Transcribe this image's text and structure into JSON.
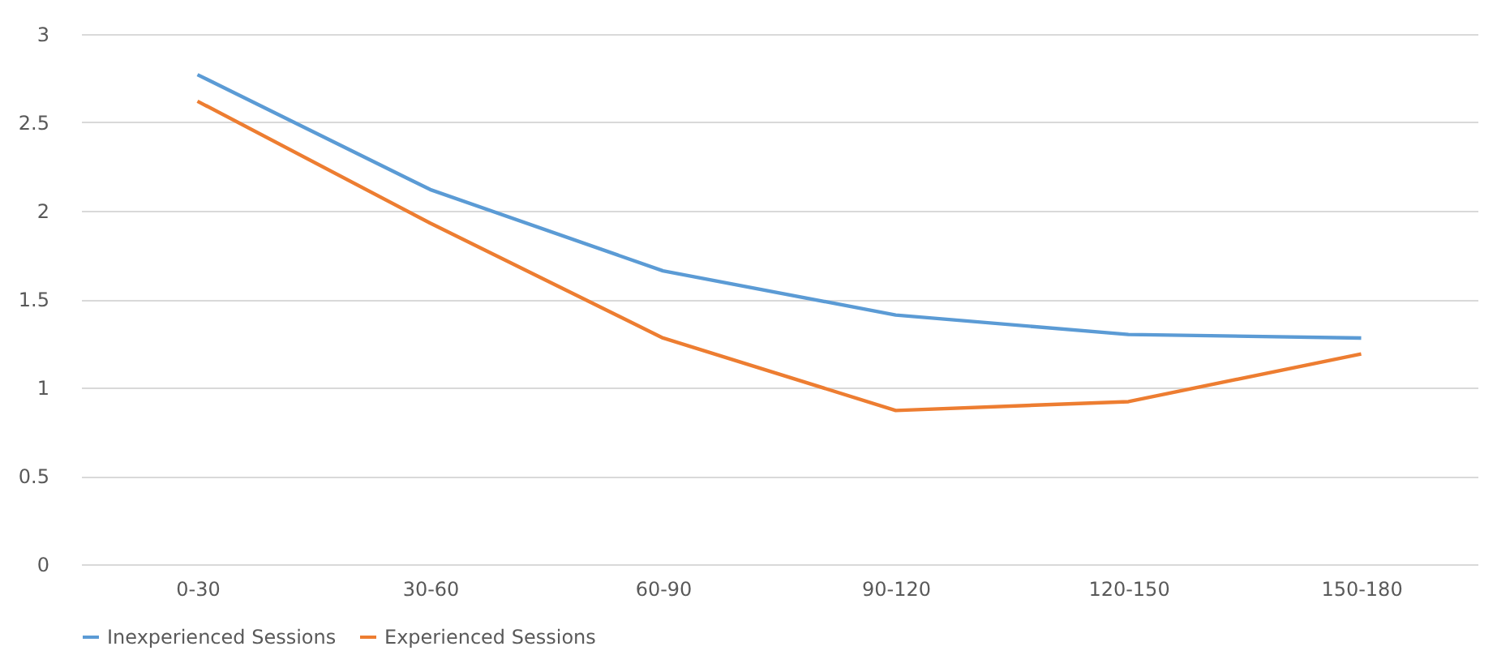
{
  "chart_data": {
    "type": "line",
    "categories": [
      "0-30",
      "30-60",
      "60-90",
      "90-120",
      "120-150",
      "150-180"
    ],
    "series": [
      {
        "name": "Inexperienced Sessions",
        "color": "#5b9bd5",
        "values": [
          2.77,
          2.12,
          1.66,
          1.41,
          1.3,
          1.28
        ]
      },
      {
        "name": "Experienced Sessions",
        "color": "#ed7d31",
        "values": [
          2.62,
          1.93,
          1.28,
          0.87,
          0.92,
          1.19
        ]
      }
    ],
    "ylim": [
      0,
      3
    ],
    "yticks": [
      0,
      0.5,
      1,
      1.5,
      2,
      2.5,
      3
    ],
    "grid": "y",
    "legend": "bottom",
    "marker": "none",
    "line_style": "solid"
  }
}
